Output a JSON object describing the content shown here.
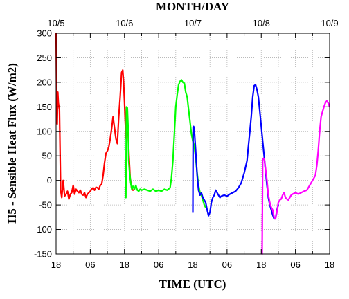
{
  "chart_data": {
    "type": "line",
    "title": "MONTH/DAY",
    "xlabel": "TIME (UTC)",
    "ylabel": "H5 - Sensible Heat Flux (W/m2)",
    "xlim": [
      0,
      96
    ],
    "ylim": [
      -150,
      300
    ],
    "grid": true,
    "legend": "none",
    "bottom_ticks": [
      {
        "x": 0,
        "label": "18"
      },
      {
        "x": 12,
        "label": "06"
      },
      {
        "x": 24,
        "label": "18"
      },
      {
        "x": 36,
        "label": "06"
      },
      {
        "x": 48,
        "label": "18"
      },
      {
        "x": 60,
        "label": "06"
      },
      {
        "x": 72,
        "label": "18"
      },
      {
        "x": 84,
        "label": "06"
      },
      {
        "x": 96,
        "label": "18"
      }
    ],
    "top_ticks": [
      {
        "x": 0,
        "label": "10/5"
      },
      {
        "x": 24,
        "label": "10/6"
      },
      {
        "x": 48,
        "label": "10/7"
      },
      {
        "x": 72,
        "label": "10/8"
      },
      {
        "x": 96,
        "label": "10/9"
      }
    ],
    "y_ticks": [
      300,
      250,
      200,
      150,
      100,
      50,
      0,
      -50,
      -100,
      -150
    ],
    "series": [
      {
        "color": "#ff0000",
        "points": [
          [
            0,
            300
          ],
          [
            0.2,
            150
          ],
          [
            0.4,
            115
          ],
          [
            0.6,
            180
          ],
          [
            0.8,
            158
          ],
          [
            1.2,
            145
          ],
          [
            1.6,
            -20
          ],
          [
            2,
            -35
          ],
          [
            2.5,
            0
          ],
          [
            3,
            -32
          ],
          [
            3.5,
            -28
          ],
          [
            4,
            -22
          ],
          [
            4.5,
            -38
          ],
          [
            5,
            -28
          ],
          [
            5.5,
            -25
          ],
          [
            6,
            -10
          ],
          [
            6.5,
            -28
          ],
          [
            7,
            -18
          ],
          [
            7.5,
            -22
          ],
          [
            8,
            -25
          ],
          [
            8.5,
            -20
          ],
          [
            9,
            -28
          ],
          [
            9.5,
            -30
          ],
          [
            10,
            -25
          ],
          [
            10.5,
            -35
          ],
          [
            11,
            -28
          ],
          [
            11.5,
            -25
          ],
          [
            12,
            -22
          ],
          [
            12.5,
            -18
          ],
          [
            13,
            -15
          ],
          [
            13.5,
            -20
          ],
          [
            14,
            -14
          ],
          [
            14.5,
            -15
          ],
          [
            15,
            -18
          ],
          [
            15.5,
            -10
          ],
          [
            16,
            -8
          ],
          [
            16.5,
            10
          ],
          [
            17,
            35
          ],
          [
            17.5,
            55
          ],
          [
            18,
            60
          ],
          [
            18.5,
            68
          ],
          [
            19,
            85
          ],
          [
            19.5,
            105
          ],
          [
            20,
            130
          ],
          [
            20.5,
            108
          ],
          [
            21,
            85
          ],
          [
            21.5,
            75
          ],
          [
            22,
            130
          ],
          [
            22.5,
            172
          ],
          [
            23,
            220
          ],
          [
            23.4,
            225
          ],
          [
            23.7,
            200
          ],
          [
            24,
            160
          ],
          [
            24.3,
            115
          ],
          [
            24.6,
            85
          ],
          [
            25,
            100
          ],
          [
            25.3,
            95
          ],
          [
            25.6,
            50
          ],
          [
            26,
            5
          ],
          [
            26.5,
            -15
          ],
          [
            27,
            -20
          ]
        ]
      },
      {
        "color": "#00ff00",
        "points": [
          [
            24.5,
            -35
          ],
          [
            24.7,
            150
          ],
          [
            25,
            148
          ],
          [
            25.3,
            105
          ],
          [
            25.5,
            40
          ],
          [
            25.8,
            15
          ],
          [
            26.2,
            -5
          ],
          [
            26.6,
            -18
          ],
          [
            27,
            -12
          ],
          [
            27.5,
            -18
          ],
          [
            28,
            -10
          ],
          [
            28.5,
            -20
          ],
          [
            29,
            -22
          ],
          [
            29.5,
            -18
          ],
          [
            30,
            -20
          ],
          [
            31,
            -18
          ],
          [
            32,
            -20
          ],
          [
            33,
            -22
          ],
          [
            34,
            -18
          ],
          [
            35,
            -22
          ],
          [
            36,
            -20
          ],
          [
            37,
            -22
          ],
          [
            38,
            -18
          ],
          [
            39,
            -20
          ],
          [
            40,
            -15
          ],
          [
            40.5,
            5
          ],
          [
            41,
            40
          ],
          [
            41.5,
            95
          ],
          [
            42,
            150
          ],
          [
            42.5,
            175
          ],
          [
            43,
            195
          ],
          [
            43.5,
            202
          ],
          [
            44,
            205
          ],
          [
            44.5,
            200
          ],
          [
            45,
            198
          ],
          [
            45.5,
            180
          ],
          [
            46,
            170
          ],
          [
            46.5,
            145
          ],
          [
            47,
            120
          ],
          [
            47.5,
            95
          ],
          [
            48,
            80
          ],
          [
            48.5,
            70
          ],
          [
            49,
            45
          ],
          [
            49.5,
            15
          ],
          [
            50,
            -10
          ],
          [
            50.5,
            -25
          ],
          [
            51,
            -30
          ],
          [
            51.5,
            -40
          ],
          [
            52,
            -50
          ],
          [
            52.5,
            -55
          ]
        ]
      },
      {
        "color": "#0000ff",
        "points": [
          [
            48,
            -65
          ],
          [
            48.1,
            108
          ],
          [
            48.3,
            110
          ],
          [
            48.6,
            95
          ],
          [
            49,
            60
          ],
          [
            49.5,
            10
          ],
          [
            50,
            -20
          ],
          [
            50.5,
            -30
          ],
          [
            51,
            -25
          ],
          [
            51.5,
            -35
          ],
          [
            52,
            -40
          ],
          [
            52.5,
            -45
          ],
          [
            53,
            -60
          ],
          [
            53.5,
            -72
          ],
          [
            54,
            -65
          ],
          [
            54.5,
            -45
          ],
          [
            55,
            -35
          ],
          [
            55.5,
            -30
          ],
          [
            56,
            -20
          ],
          [
            56.5,
            -25
          ],
          [
            57,
            -30
          ],
          [
            57.5,
            -35
          ],
          [
            58,
            -32
          ],
          [
            59,
            -30
          ],
          [
            60,
            -32
          ],
          [
            61,
            -28
          ],
          [
            62,
            -25
          ],
          [
            63,
            -22
          ],
          [
            64,
            -15
          ],
          [
            65,
            -5
          ],
          [
            66,
            15
          ],
          [
            67,
            40
          ],
          [
            67.5,
            70
          ],
          [
            68,
            100
          ],
          [
            68.5,
            130
          ],
          [
            69,
            170
          ],
          [
            69.5,
            193
          ],
          [
            70,
            195
          ],
          [
            70.5,
            185
          ],
          [
            71,
            170
          ],
          [
            71.5,
            140
          ],
          [
            72,
            110
          ],
          [
            72.5,
            80
          ],
          [
            73,
            50
          ],
          [
            73.5,
            20
          ],
          [
            74,
            -10
          ],
          [
            74.5,
            -35
          ],
          [
            75,
            -50
          ],
          [
            75.5,
            -60
          ],
          [
            76,
            -70
          ],
          [
            76.5,
            -78
          ],
          [
            77,
            -78
          ],
          [
            77.5,
            -60
          ],
          [
            78,
            -50
          ]
        ]
      },
      {
        "color": "#ff00ff",
        "points": [
          [
            72.3,
            -150
          ],
          [
            72.5,
            42
          ],
          [
            72.8,
            45
          ],
          [
            73.1,
            42
          ],
          [
            73.5,
            25
          ],
          [
            74,
            0
          ],
          [
            74.5,
            -30
          ],
          [
            75,
            -45
          ],
          [
            75.5,
            -55
          ],
          [
            76,
            -60
          ],
          [
            76.5,
            -75
          ],
          [
            77,
            -78
          ],
          [
            77.5,
            -65
          ],
          [
            78,
            -45
          ],
          [
            78.5,
            -40
          ],
          [
            79,
            -38
          ],
          [
            79.5,
            -30
          ],
          [
            80,
            -25
          ],
          [
            80.5,
            -35
          ],
          [
            81,
            -38
          ],
          [
            81.5,
            -40
          ],
          [
            82,
            -35
          ],
          [
            82.5,
            -30
          ],
          [
            83,
            -28
          ],
          [
            84,
            -25
          ],
          [
            85,
            -28
          ],
          [
            86,
            -25
          ],
          [
            87,
            -22
          ],
          [
            88,
            -20
          ],
          [
            89,
            -10
          ],
          [
            90,
            0
          ],
          [
            91,
            10
          ],
          [
            91.5,
            30
          ],
          [
            92,
            60
          ],
          [
            92.5,
            100
          ],
          [
            93,
            130
          ],
          [
            93.5,
            140
          ],
          [
            94,
            150
          ],
          [
            94.5,
            158
          ],
          [
            95,
            162
          ],
          [
            95.5,
            158
          ],
          [
            96,
            150
          ]
        ]
      }
    ]
  }
}
